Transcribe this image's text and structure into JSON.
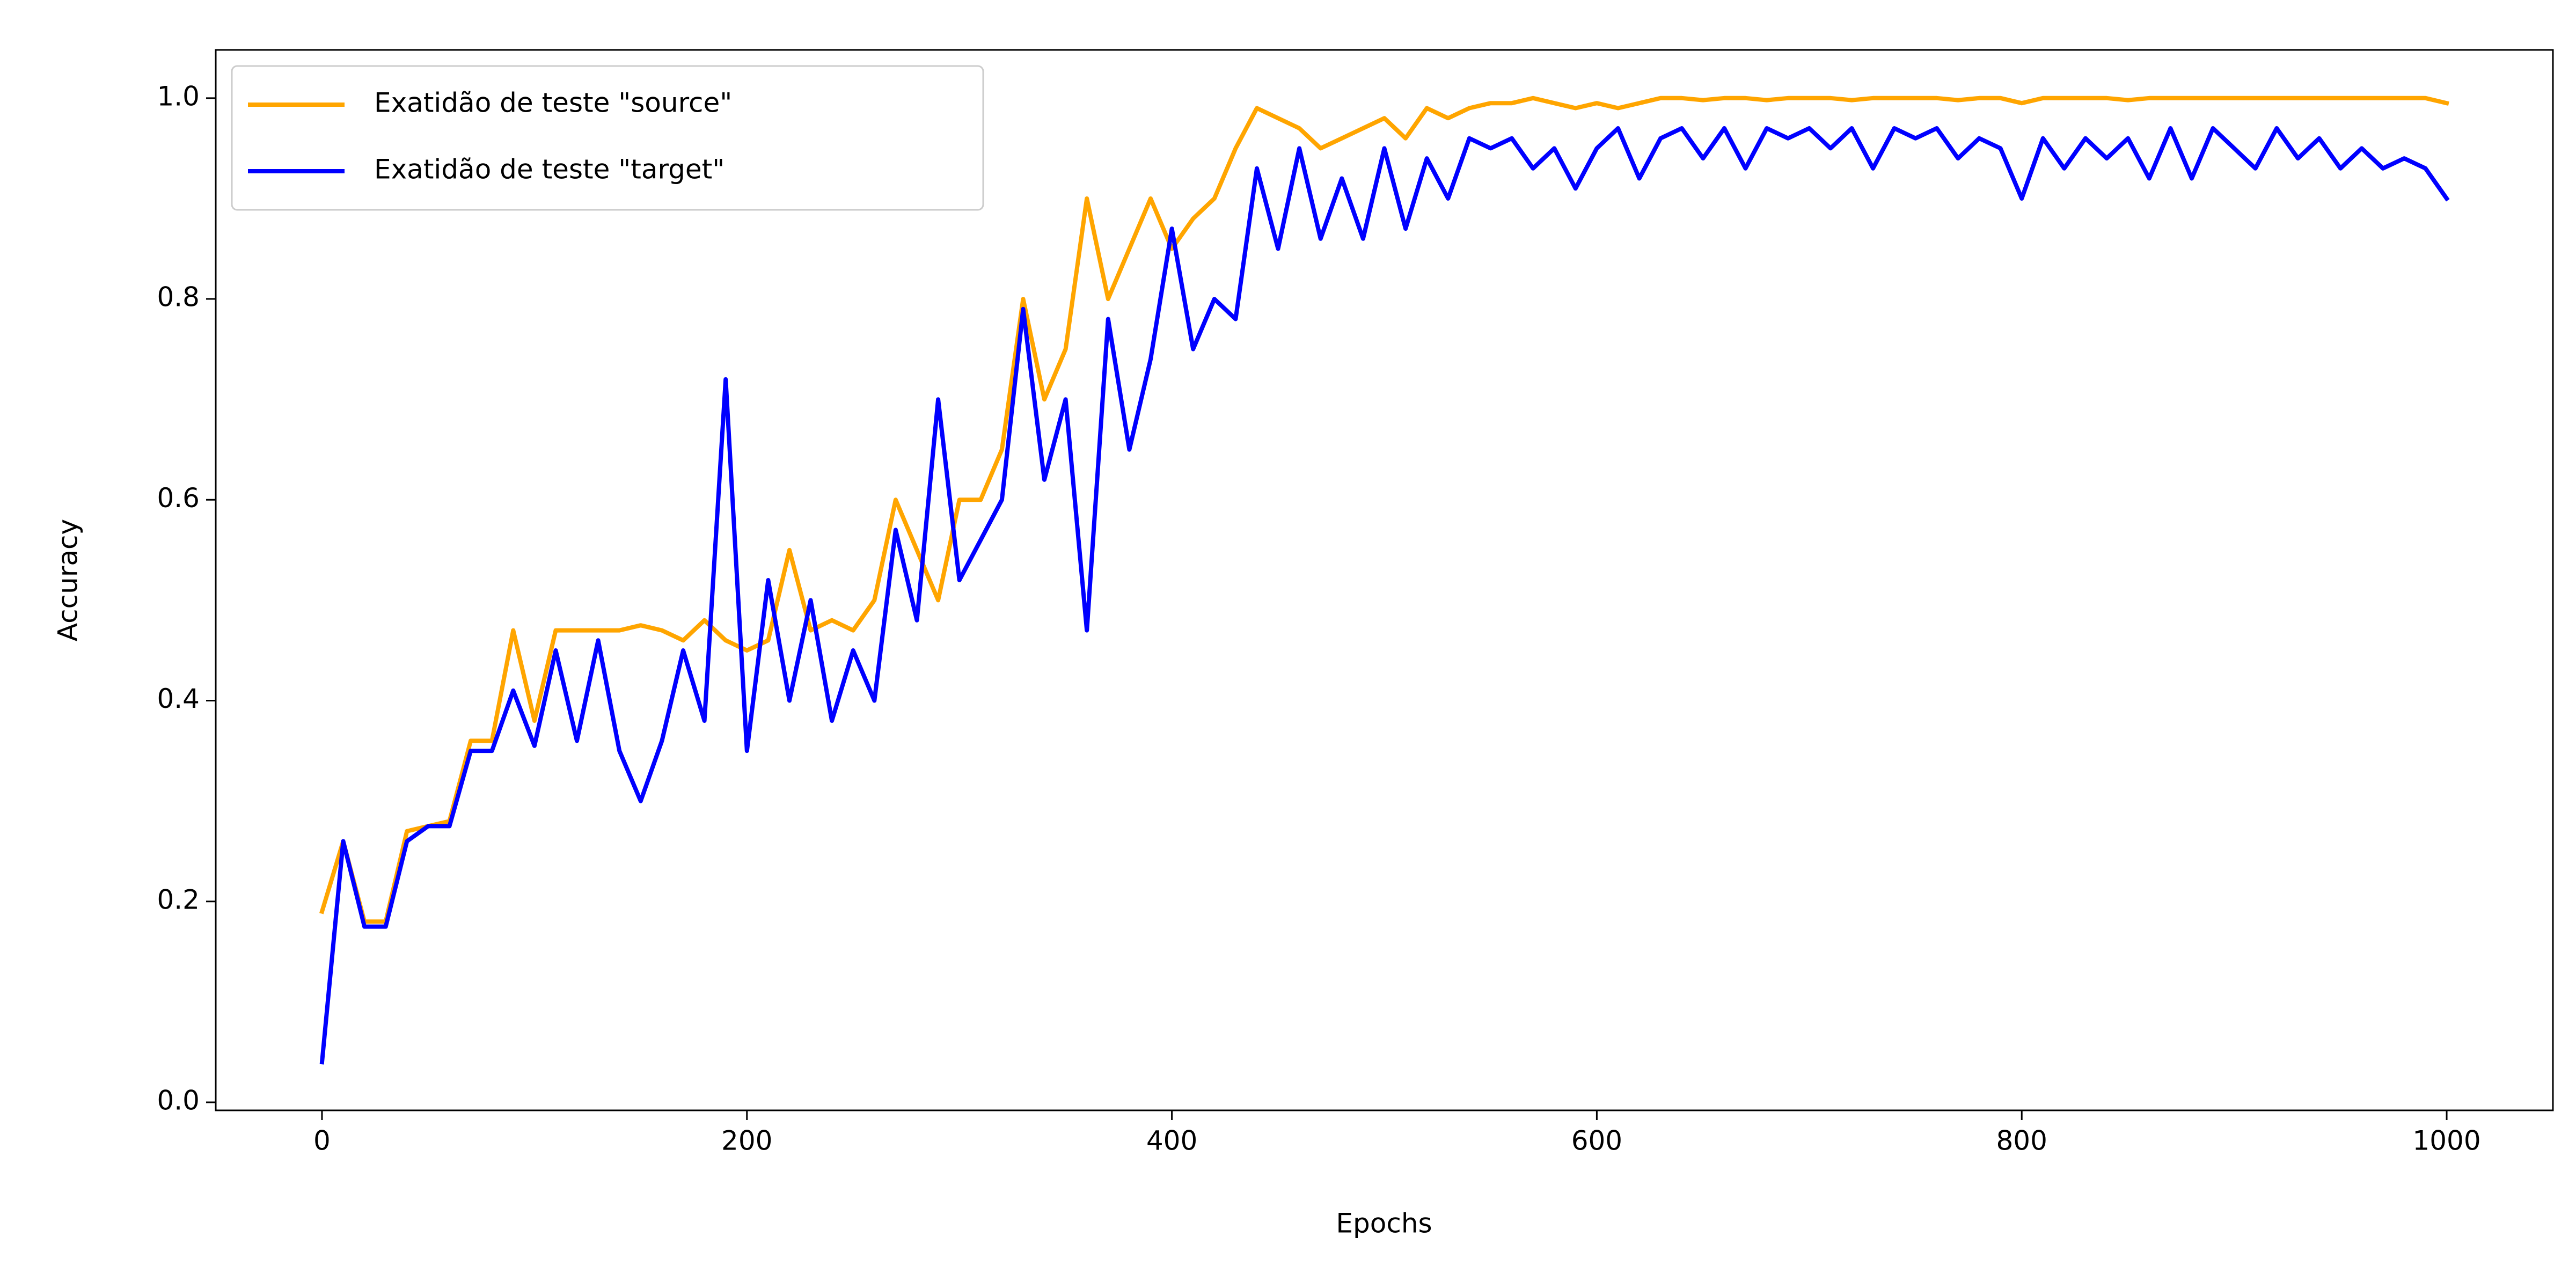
{
  "chart_data": {
    "type": "line",
    "xlabel": "Epochs",
    "ylabel": "Accuracy",
    "x": [
      0,
      10,
      20,
      30,
      40,
      50,
      60,
      70,
      80,
      90,
      100,
      110,
      120,
      130,
      140,
      150,
      160,
      170,
      180,
      190,
      200,
      210,
      220,
      230,
      240,
      250,
      260,
      270,
      280,
      290,
      300,
      310,
      320,
      330,
      340,
      350,
      360,
      370,
      380,
      390,
      400,
      410,
      420,
      430,
      440,
      450,
      460,
      470,
      480,
      490,
      500,
      510,
      520,
      530,
      540,
      550,
      560,
      570,
      580,
      590,
      600,
      610,
      620,
      630,
      640,
      650,
      660,
      670,
      680,
      690,
      700,
      710,
      720,
      730,
      740,
      750,
      760,
      770,
      780,
      790,
      800,
      810,
      820,
      830,
      840,
      850,
      860,
      870,
      880,
      890,
      900,
      910,
      920,
      930,
      940,
      950,
      960,
      970,
      980,
      990,
      1000
    ],
    "series": [
      {
        "name": "Exatidão de teste \"source\"",
        "color": "#ffa500",
        "values": [
          0.19,
          0.26,
          0.18,
          0.18,
          0.27,
          0.275,
          0.28,
          0.36,
          0.36,
          0.47,
          0.38,
          0.47,
          0.47,
          0.47,
          0.47,
          0.475,
          0.47,
          0.46,
          0.48,
          0.46,
          0.45,
          0.46,
          0.55,
          0.47,
          0.48,
          0.47,
          0.5,
          0.6,
          0.55,
          0.5,
          0.6,
          0.6,
          0.65,
          0.8,
          0.7,
          0.75,
          0.9,
          0.8,
          0.85,
          0.9,
          0.85,
          0.88,
          0.9,
          0.95,
          0.99,
          0.98,
          0.97,
          0.95,
          0.96,
          0.97,
          0.98,
          0.96,
          0.99,
          0.98,
          0.99,
          0.995,
          0.995,
          1.0,
          0.995,
          0.99,
          0.995,
          0.99,
          0.995,
          1.0,
          1.0,
          0.998,
          1.0,
          1.0,
          0.998,
          1.0,
          1.0,
          1.0,
          0.998,
          1.0,
          1.0,
          1.0,
          1.0,
          0.998,
          1.0,
          1.0,
          0.995,
          1.0,
          1.0,
          1.0,
          1.0,
          0.998,
          1.0,
          1.0,
          1.0,
          1.0,
          1.0,
          1.0,
          1.0,
          1.0,
          1.0,
          1.0,
          1.0,
          1.0,
          1.0,
          1.0,
          0.995
        ]
      },
      {
        "name": "Exatidão de teste \"target\"",
        "color": "#0000ff",
        "values": [
          0.04,
          0.26,
          0.175,
          0.175,
          0.26,
          0.275,
          0.275,
          0.35,
          0.35,
          0.41,
          0.355,
          0.45,
          0.36,
          0.46,
          0.35,
          0.3,
          0.36,
          0.45,
          0.38,
          0.72,
          0.35,
          0.52,
          0.4,
          0.5,
          0.38,
          0.45,
          0.4,
          0.57,
          0.48,
          0.7,
          0.52,
          0.56,
          0.6,
          0.79,
          0.62,
          0.7,
          0.47,
          0.78,
          0.65,
          0.74,
          0.87,
          0.75,
          0.8,
          0.78,
          0.93,
          0.85,
          0.95,
          0.86,
          0.92,
          0.86,
          0.95,
          0.87,
          0.94,
          0.9,
          0.96,
          0.95,
          0.96,
          0.93,
          0.95,
          0.91,
          0.95,
          0.97,
          0.92,
          0.96,
          0.97,
          0.94,
          0.97,
          0.93,
          0.97,
          0.96,
          0.97,
          0.95,
          0.97,
          0.93,
          0.97,
          0.96,
          0.97,
          0.94,
          0.96,
          0.95,
          0.9,
          0.96,
          0.93,
          0.96,
          0.94,
          0.96,
          0.92,
          0.97,
          0.92,
          0.97,
          0.95,
          0.93,
          0.97,
          0.94,
          0.96,
          0.93,
          0.95,
          0.93,
          0.94,
          0.93,
          0.9
        ]
      }
    ],
    "xlim": [
      -50,
      1050
    ],
    "ylim": [
      -0.008,
      1.048
    ],
    "xticks": [
      0,
      200,
      400,
      600,
      800,
      1000
    ],
    "yticks": [
      {
        "value": 0,
        "label": "0.0"
      },
      0.2,
      0.4,
      0.6,
      0.8,
      {
        "value": 1,
        "label": "1.0"
      }
    ],
    "grid": false,
    "legend": "upper left"
  }
}
